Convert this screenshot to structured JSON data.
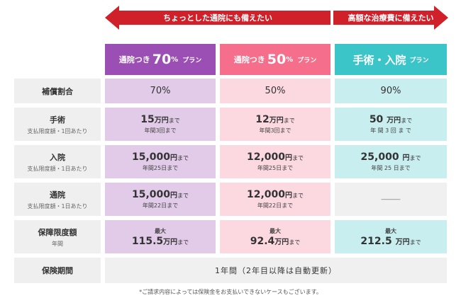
{
  "arrows": {
    "left": "ちょっとした通院にも備えたい",
    "right": "高額な治療費に備えたい"
  },
  "plans": {
    "p70": {
      "pre": "通院つき",
      "num": "70",
      "pct": "%",
      "post": "プラン"
    },
    "p50": {
      "pre": "通院つき",
      "num": "50",
      "pct": "%",
      "post": "プラン"
    },
    "surgery": {
      "name": "手術・入院",
      "post": "プラン"
    }
  },
  "rows": {
    "ratio": {
      "label": "補償割合",
      "p70": "70%",
      "p50": "50%",
      "surgery": "90%"
    },
    "surgery": {
      "label": "手術",
      "sub": "支払限度額・1回あたり",
      "p70": {
        "num": "15",
        "unit": "万円",
        "until": "まで",
        "sub": "年間3回まで"
      },
      "p50": {
        "num": "12",
        "unit": "万円",
        "until": "まで",
        "sub": "年間3回まで"
      },
      "surgery": {
        "num": "50 ",
        "unit": "万円",
        "until": "まで",
        "sub": "年 間 3 回 ま で"
      }
    },
    "hospital": {
      "label": "入院",
      "sub": "支払限度額・1日あたり",
      "p70": {
        "num": "15,000",
        "unit": "円",
        "until": "まで",
        "sub": "年間25日まで"
      },
      "p50": {
        "num": "12,000",
        "unit": "円",
        "until": "まで",
        "sub": "年間25日まで"
      },
      "surgery": {
        "num": "25,000 ",
        "unit": "円",
        "until": "まで",
        "sub": "年間 25 日まで"
      }
    },
    "outpatient": {
      "label": "通院",
      "sub": "支払限度額・1日あたり",
      "p70": {
        "num": "15,000",
        "unit": "円",
        "until": "まで",
        "sub": "年間22日まで"
      },
      "p50": {
        "num": "12,000",
        "unit": "円",
        "until": "まで",
        "sub": "年間22日まで"
      },
      "surgery": "―――"
    },
    "limit": {
      "label": "保障限度額",
      "sub": "年間",
      "p70": {
        "top": "最大",
        "num": "115.5",
        "unit": "万円",
        "until": "まで"
      },
      "p50": {
        "top": "最大",
        "num": "92.4",
        "unit": "万円",
        "until": "まで"
      },
      "surgery": {
        "top": "最大",
        "num": "212.5 ",
        "unit": "万円",
        "until": "まで"
      }
    },
    "period": {
      "label": "保険期間",
      "value": "1年間（2年目以降は自動更新）"
    }
  },
  "note": "*ご請求内容によっては保険金をお支払いできないケースもございます。"
}
